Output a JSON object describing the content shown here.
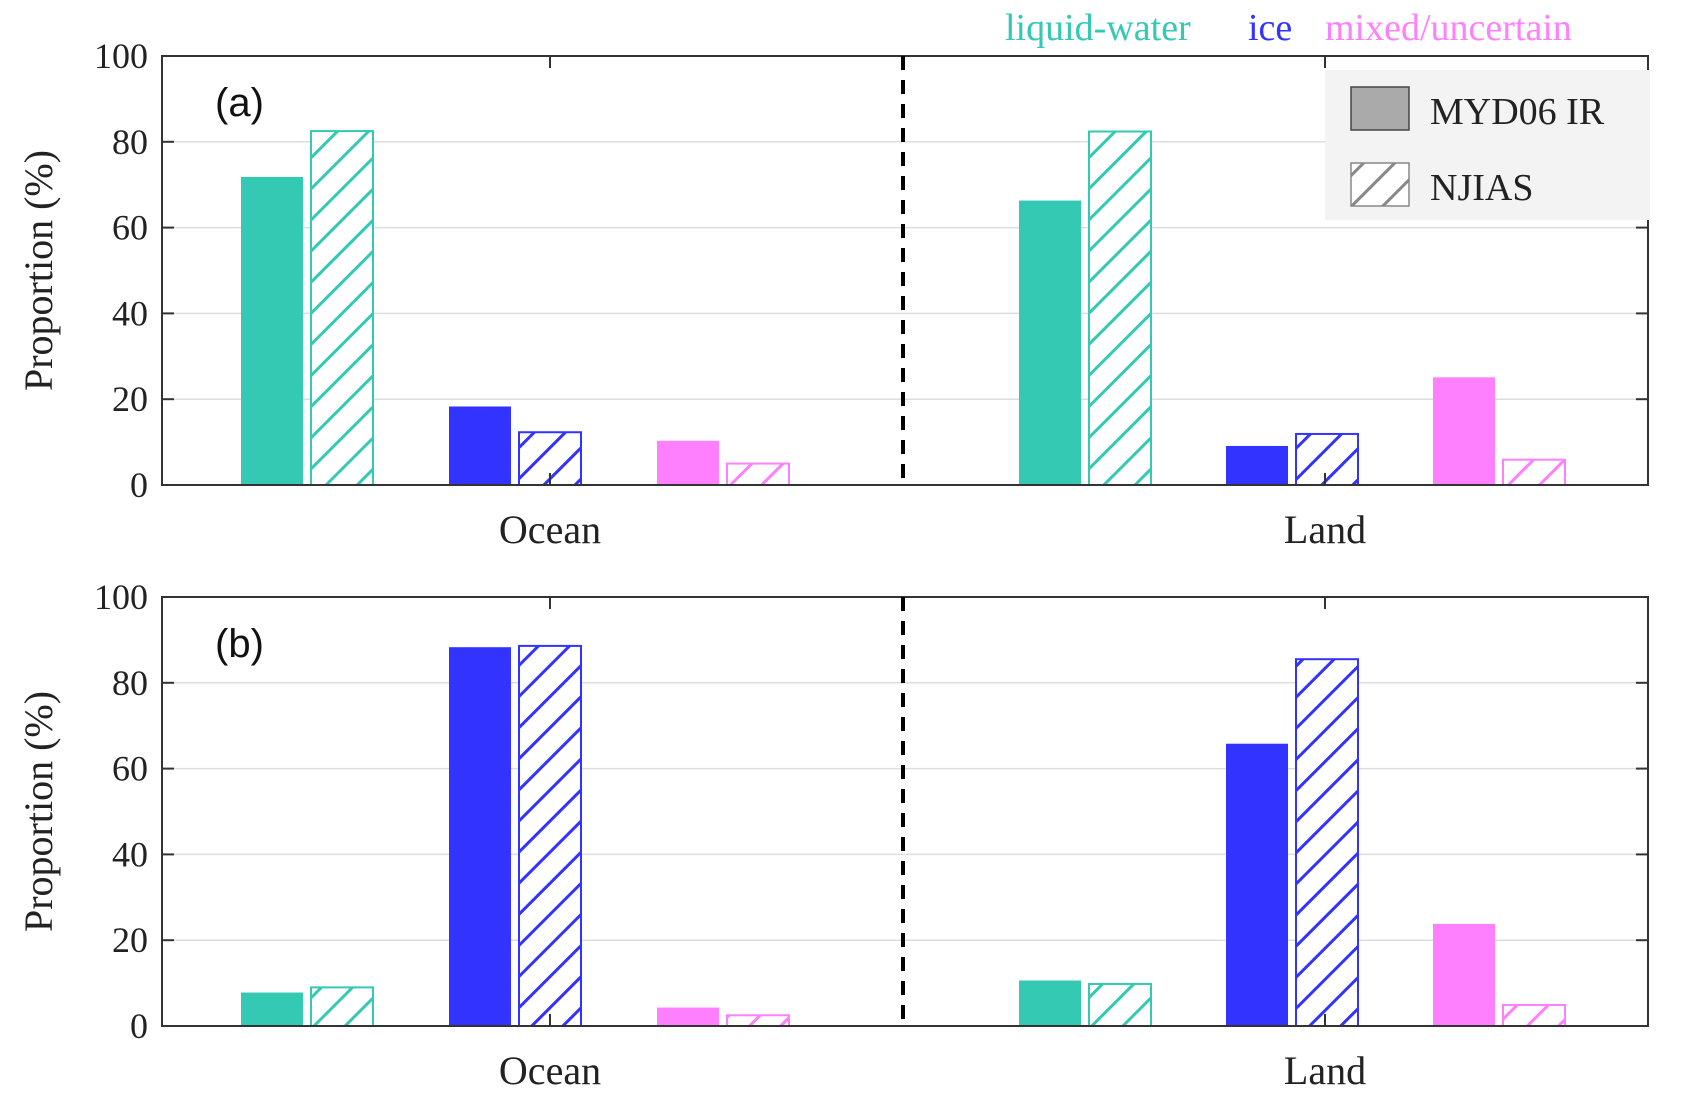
{
  "chart_data": [
    {
      "type": "bar",
      "panel_label": "(a)",
      "ylabel": "Proportion (%)",
      "ylim": [
        0,
        100
      ],
      "yticks": [
        0,
        20,
        40,
        60,
        80,
        100
      ],
      "grid": true,
      "groups": [
        "Ocean",
        "Land"
      ],
      "categories": [
        "liquid-water",
        "ice",
        "mixed/uncertain"
      ],
      "series": [
        {
          "name": "MYD06 IR",
          "style": "solid",
          "values": {
            "Ocean": [
              71.8,
              18.3,
              10.3
            ],
            "Land": [
              66.3,
              9.1,
              25.1
            ]
          }
        },
        {
          "name": "NJIAS",
          "style": "hatched",
          "values": {
            "Ocean": [
              82.5,
              12.3,
              5.0
            ],
            "Land": [
              82.4,
              11.9,
              5.9
            ]
          }
        }
      ]
    },
    {
      "type": "bar",
      "panel_label": "(b)",
      "ylabel": "Proportion (%)",
      "ylim": [
        0,
        100
      ],
      "yticks": [
        0,
        20,
        40,
        60,
        80,
        100
      ],
      "grid": true,
      "groups": [
        "Ocean",
        "Land"
      ],
      "categories": [
        "liquid-water",
        "ice",
        "mixed/uncertain"
      ],
      "series": [
        {
          "name": "MYD06 IR",
          "style": "solid",
          "values": {
            "Ocean": [
              7.8,
              88.3,
              4.3
            ],
            "Land": [
              10.6,
              65.8,
              23.8
            ]
          }
        },
        {
          "name": "NJIAS",
          "style": "hatched",
          "values": {
            "Ocean": [
              9.0,
              88.6,
              2.5
            ],
            "Land": [
              9.8,
              85.5,
              4.9
            ]
          }
        }
      ]
    }
  ],
  "category_legend": {
    "placement": "top-right",
    "items": [
      {
        "label": "liquid-water",
        "color": "#33c9b2"
      },
      {
        "label": "ice",
        "color": "#3333ff"
      },
      {
        "label": "mixed/uncertain",
        "color": "#ff80ff"
      }
    ]
  },
  "series_legend": {
    "placement": "top-right",
    "items": [
      {
        "label": "MYD06 IR",
        "style": "solid",
        "color": "#aaaaaa"
      },
      {
        "label": "NJIAS",
        "style": "hatched",
        "color": "#888888"
      }
    ]
  },
  "colors": {
    "liquid-water": "#33c9b2",
    "ice": "#3333ff",
    "mixed/uncertain": "#ff80ff",
    "axis": "#333333",
    "grid": "#dddddd",
    "divider": "#000000"
  }
}
